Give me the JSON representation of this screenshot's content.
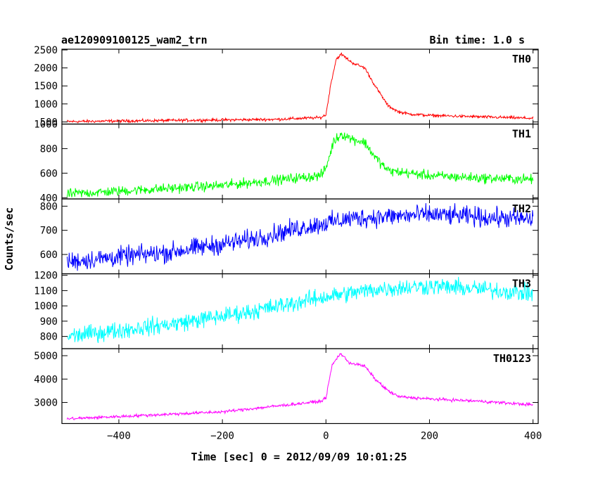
{
  "chart_data": {
    "type": "line",
    "title": "ae120909100125_wam2_trn",
    "bin_time": "Bin time: 1.0 s",
    "xlabel": "Time [sec] 0 = 2012/09/09 10:01:25",
    "ylabel": "Counts/sec",
    "xlim": [
      -510,
      410
    ],
    "x_ticks": [
      -400,
      -200,
      0,
      200,
      400
    ],
    "x_tick_labels": [
      "−400",
      "−200",
      "0",
      "200",
      "400"
    ],
    "panels": [
      {
        "name": "TH0",
        "color": "#ff0000",
        "ylim": [
          440,
          2520
        ],
        "y_ticks": [
          500,
          1000,
          1500,
          2000,
          2500
        ],
        "noise": 25,
        "profile": [
          [
            -500,
            510
          ],
          [
            -100,
            570
          ],
          [
            -10,
            620
          ],
          [
            0,
            700
          ],
          [
            10,
            1600
          ],
          [
            20,
            2250
          ],
          [
            30,
            2380
          ],
          [
            50,
            2150
          ],
          [
            75,
            2000
          ],
          [
            95,
            1500
          ],
          [
            120,
            950
          ],
          [
            140,
            780
          ],
          [
            160,
            720
          ],
          [
            200,
            680
          ],
          [
            300,
            640
          ],
          [
            400,
            600
          ]
        ]
      },
      {
        "name": "TH1",
        "color": "#00ff00",
        "ylim": [
          390,
          1000
        ],
        "y_ticks": [
          400,
          600,
          800,
          1000
        ],
        "noise": 25,
        "profile": [
          [
            -500,
            430
          ],
          [
            -200,
            500
          ],
          [
            -10,
            580
          ],
          [
            0,
            640
          ],
          [
            15,
            860
          ],
          [
            30,
            920
          ],
          [
            50,
            880
          ],
          [
            75,
            850
          ],
          [
            95,
            730
          ],
          [
            120,
            620
          ],
          [
            200,
            580
          ],
          [
            300,
            560
          ],
          [
            400,
            550
          ]
        ]
      },
      {
        "name": "TH2",
        "color": "#0000ff",
        "ylim": [
          520,
          830
        ],
        "y_ticks": [
          600,
          700,
          800
        ],
        "noise": 25,
        "profile": [
          [
            -500,
            570
          ],
          [
            -300,
            610
          ],
          [
            -150,
            660
          ],
          [
            -50,
            710
          ],
          [
            50,
            750
          ],
          [
            200,
            765
          ],
          [
            400,
            745
          ]
        ]
      },
      {
        "name": "TH3",
        "color": "#00ffff",
        "ylim": [
          720,
          1210
        ],
        "y_ticks": [
          800,
          900,
          1000,
          1100,
          1200
        ],
        "noise": 35,
        "profile": [
          [
            -500,
            800
          ],
          [
            -300,
            880
          ],
          [
            -150,
            960
          ],
          [
            0,
            1060
          ],
          [
            100,
            1110
          ],
          [
            200,
            1130
          ],
          [
            300,
            1110
          ],
          [
            400,
            1080
          ]
        ]
      },
      {
        "name": "TH0123",
        "color": "#ff00ff",
        "ylim": [
          2100,
          5300
        ],
        "y_ticks": [
          3000,
          4000,
          5000
        ],
        "noise": 40,
        "profile": [
          [
            -500,
            2300
          ],
          [
            -200,
            2600
          ],
          [
            -10,
            3050
          ],
          [
            0,
            3200
          ],
          [
            12,
            4600
          ],
          [
            28,
            5100
          ],
          [
            45,
            4700
          ],
          [
            75,
            4550
          ],
          [
            95,
            4000
          ],
          [
            120,
            3500
          ],
          [
            140,
            3250
          ],
          [
            200,
            3150
          ],
          [
            300,
            3050
          ],
          [
            400,
            2900
          ]
        ]
      }
    ]
  }
}
